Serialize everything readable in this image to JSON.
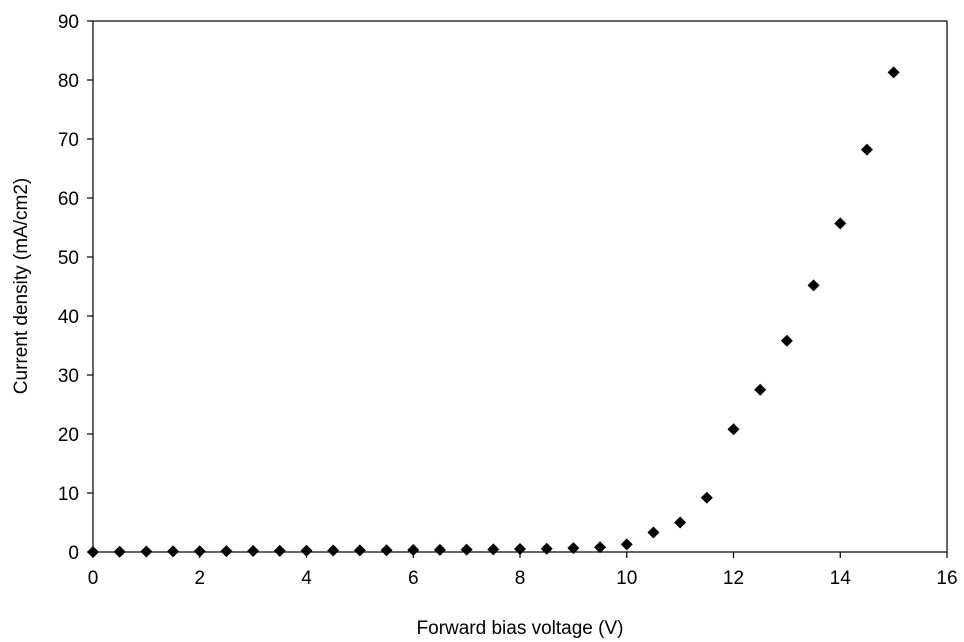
{
  "chart_data": {
    "type": "scatter",
    "title": "",
    "xlabel": "Forward bias voltage (V)",
    "ylabel": "Current density (mA/cm2)",
    "xlim": [
      0,
      16
    ],
    "ylim": [
      0,
      90
    ],
    "xticks": [
      0,
      2,
      4,
      6,
      8,
      10,
      12,
      14,
      16
    ],
    "yticks": [
      0,
      10,
      20,
      30,
      40,
      50,
      60,
      70,
      80,
      90
    ],
    "grid": false,
    "legend": "none",
    "marker": "diamond",
    "marker_color": "#000000",
    "series": [
      {
        "x": [
          0,
          0.5,
          1,
          1.5,
          2,
          2.5,
          3,
          3.5,
          4,
          4.5,
          5,
          5.5,
          6,
          6.5,
          7,
          7.5,
          8,
          8.5,
          9,
          9.5,
          10,
          10.5,
          11,
          11.5,
          12,
          12.5,
          13,
          13.5,
          14,
          14.5,
          15
        ],
        "y": [
          0,
          0.05,
          0.08,
          0.1,
          0.12,
          0.15,
          0.18,
          0.2,
          0.22,
          0.25,
          0.28,
          0.3,
          0.33,
          0.36,
          0.4,
          0.45,
          0.5,
          0.55,
          0.65,
          0.8,
          1.3,
          3.3,
          5.0,
          9.2,
          20.8,
          27.5,
          35.8,
          45.2,
          55.7,
          68.2,
          81.3
        ]
      }
    ]
  }
}
